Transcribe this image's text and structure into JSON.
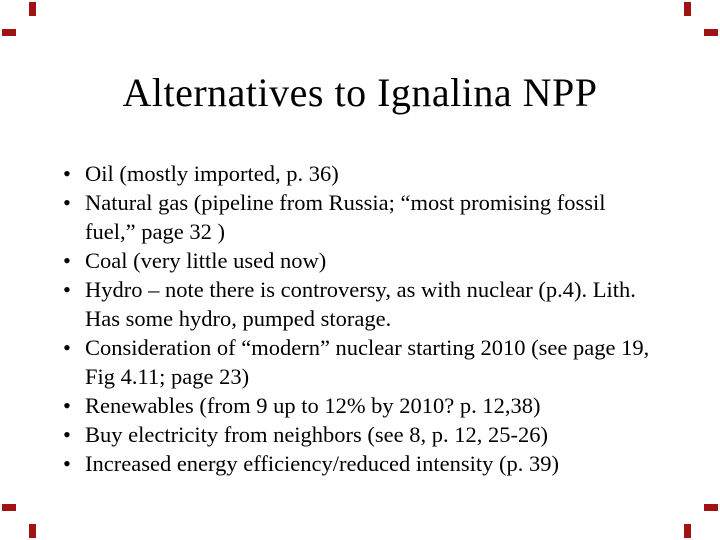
{
  "slide": {
    "title": "Alternatives to Ignalina NPP",
    "bullet_marker": "•",
    "bullets": [
      "Oil (mostly imported, p. 36)",
      "Natural gas (pipeline from Russia; “most promising fossil fuel,” page 32 )",
      "Coal (very little used now)",
      "Hydro – note there is controversy, as with nuclear (p.4). Lith. Has some hydro, pumped storage.",
      "Consideration of “modern” nuclear starting 2010 (see page 19, Fig 4.11; page 23)",
      "Renewables (from 9 up to 12% by 2010? p. 12,38)",
      "Buy electricity from neighbors (see 8, p. 12, 25-26)",
      "Increased energy efficiency/reduced intensity (p. 39)"
    ],
    "colors": {
      "background": "#ffffff",
      "text": "#000000",
      "corner_mark": "#a11212"
    }
  }
}
